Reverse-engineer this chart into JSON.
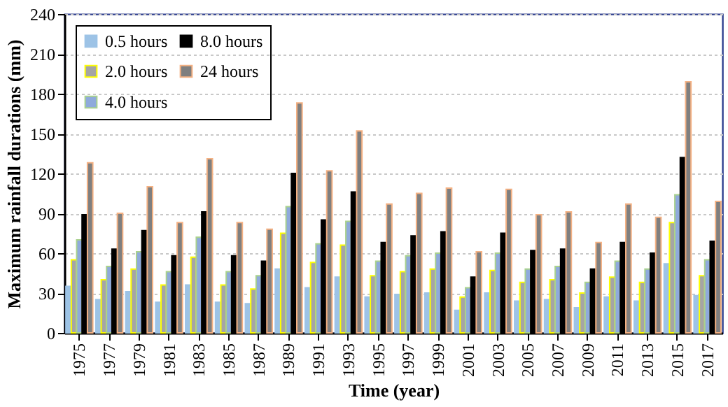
{
  "chart_data": {
    "type": "bar",
    "xlabel": "Time (year)",
    "ylabel": "Maximum rainfall durations (mm)",
    "categories": [
      "1975",
      "1977",
      "1979",
      "1981",
      "1983",
      "1985",
      "1987",
      "1989",
      "1991",
      "1993",
      "1995",
      "1997",
      "1999",
      "2001",
      "2003",
      "2005",
      "2007",
      "2009",
      "2011",
      "2013",
      "2015",
      "2017"
    ],
    "series": [
      {
        "name": "0.5 hours",
        "color": "#9dc3e6",
        "values": [
          35,
          25,
          31,
          23,
          36,
          23,
          22,
          48,
          34,
          42,
          27,
          29,
          30,
          17,
          30,
          24,
          25,
          19,
          27,
          24,
          52,
          28
        ]
      },
      {
        "name": "2.0 hours",
        "color": "#a5a5a5",
        "values": [
          55,
          40,
          48,
          36,
          57,
          36,
          33,
          75,
          53,
          66,
          43,
          46,
          48,
          27,
          47,
          38,
          40,
          30,
          42,
          38,
          83,
          43
        ]
      },
      {
        "name": "4.0 hours",
        "color": "#8faadc",
        "values": [
          70,
          50,
          61,
          46,
          72,
          46,
          43,
          95,
          67,
          84,
          54,
          58,
          60,
          34,
          60,
          48,
          50,
          38,
          54,
          48,
          104,
          55
        ]
      },
      {
        "name": "8.0 hours",
        "color": "#000000",
        "values": [
          89,
          63,
          77,
          58,
          91,
          58,
          54,
          120,
          85,
          106,
          68,
          73,
          76,
          42,
          75,
          62,
          63,
          48,
          68,
          60,
          132,
          69
        ]
      },
      {
        "name": "24 hours",
        "color": "#7f7f7f",
        "values": [
          128,
          90,
          110,
          83,
          131,
          83,
          78,
          173,
          122,
          152,
          97,
          105,
          109,
          61,
          108,
          89,
          91,
          68,
          97,
          87,
          189,
          99
        ]
      }
    ],
    "ylim": [
      0,
      240
    ],
    "yticks": [
      0,
      30,
      60,
      90,
      120,
      150,
      180,
      210,
      240
    ],
    "grid": "y",
    "legend": "top left"
  }
}
